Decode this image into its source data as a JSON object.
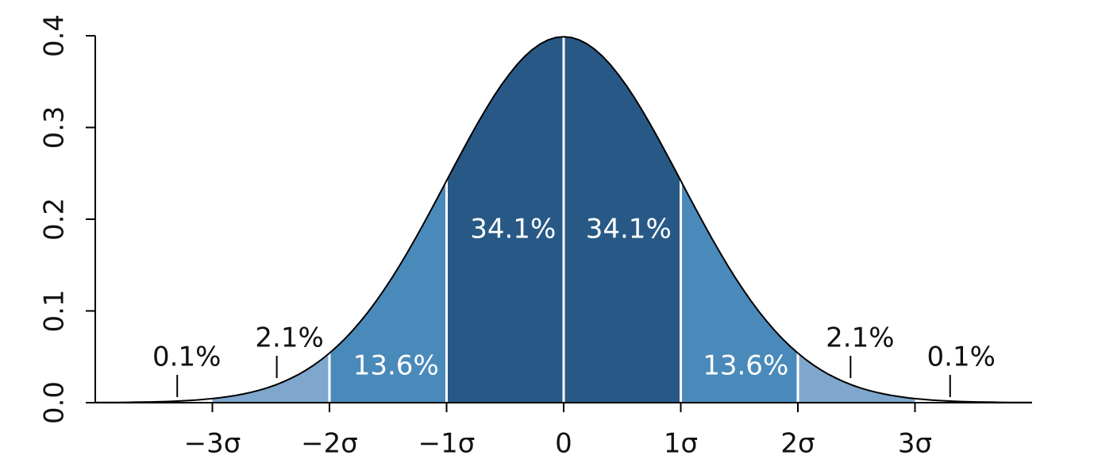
{
  "chart_data": {
    "type": "normal",
    "xlim": [
      -4,
      4
    ],
    "xticks": [
      {
        "value": -3,
        "label": "−3σ"
      },
      {
        "value": -2,
        "label": "−2σ"
      },
      {
        "value": -1,
        "label": "−1σ"
      },
      0,
      {
        "value": 1,
        "label": "1σ"
      },
      {
        "value": 2,
        "label": "2σ"
      },
      {
        "value": 3,
        "label": "3σ"
      }
    ],
    "ylim": [
      0,
      0.4
    ],
    "yticks": [
      {
        "value": 0,
        "label": "0.0"
      },
      0.1,
      0.2,
      0.3,
      0.4
    ],
    "bands": {
      "edges": [
        -3,
        -2,
        -1,
        0,
        1,
        2,
        3
      ],
      "values": [
        2.1,
        13.6,
        34.1,
        34.1,
        13.6,
        2.1
      ],
      "value_labels": [
        "2.1%",
        "13.6%",
        "34.1%",
        "34.1%",
        "13.6%",
        "2.1%"
      ],
      "colors": [
        "#7fa7cd",
        "#4a8abb",
        "#285986",
        "#285986",
        "#4a8abb",
        "#7fa7cd"
      ]
    },
    "tails": {
      "values": [
        0.1,
        0.1
      ],
      "value_labels": [
        "0.1%",
        "0.1%"
      ]
    }
  }
}
